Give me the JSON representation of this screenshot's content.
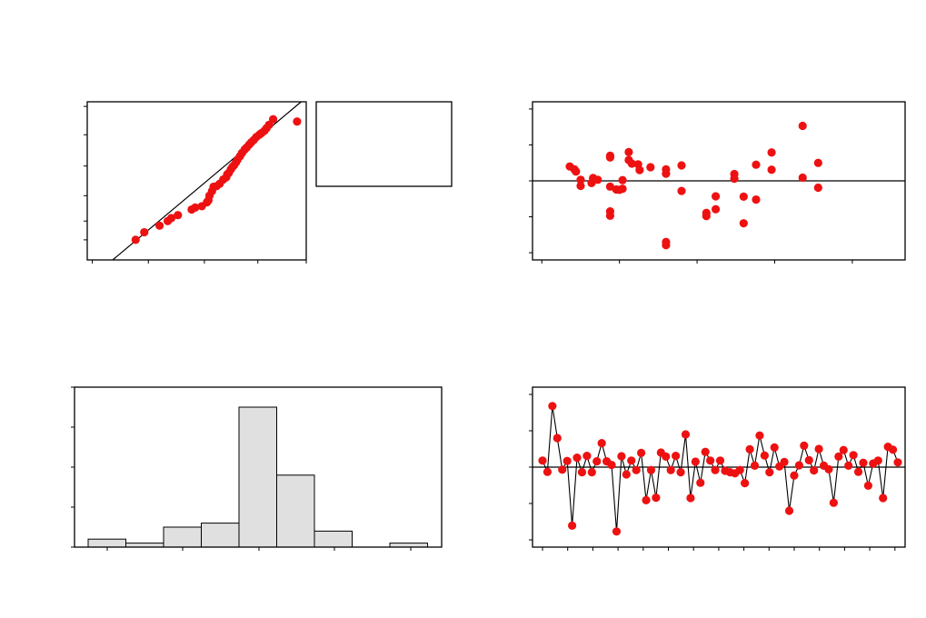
{
  "colors": {
    "points": "#ee1111",
    "bars": "#e0e0e0",
    "axes": "#000000",
    "background": "#ffffff"
  },
  "legend_box": {
    "text": ""
  },
  "chart_data": [
    {
      "id": "normal-probability-plot",
      "type": "scatter",
      "xlim": [
        -3.3,
        1.0
      ],
      "ylim": [
        -2.4,
        2.4
      ],
      "reference_line": {
        "x": [
          -2.8,
          0.9
        ],
        "y": [
          -2.4,
          2.4
        ]
      },
      "points": [
        [
          -2.35,
          -1.79
        ],
        [
          -2.18,
          -1.56
        ],
        [
          -1.88,
          -1.36
        ],
        [
          -1.72,
          -1.22
        ],
        [
          -1.65,
          -1.13
        ],
        [
          -1.52,
          -1.04
        ],
        [
          -1.25,
          -0.87
        ],
        [
          -1.18,
          -0.81
        ],
        [
          -1.05,
          -0.77
        ],
        [
          -0.95,
          -0.65
        ],
        [
          -0.92,
          -0.59
        ],
        [
          -0.9,
          -0.45
        ],
        [
          -0.85,
          -0.31
        ],
        [
          -0.82,
          -0.18
        ],
        [
          -0.76,
          -0.16
        ],
        [
          -0.7,
          -0.09
        ],
        [
          -0.63,
          0.04
        ],
        [
          -0.57,
          0.11
        ],
        [
          -0.55,
          0.2
        ],
        [
          -0.52,
          0.24
        ],
        [
          -0.48,
          0.35
        ],
        [
          -0.45,
          0.42
        ],
        [
          -0.42,
          0.47
        ],
        [
          -0.38,
          0.56
        ],
        [
          -0.35,
          0.64
        ],
        [
          -0.3,
          0.75
        ],
        [
          -0.26,
          0.85
        ],
        [
          -0.21,
          0.95
        ],
        [
          -0.17,
          1.01
        ],
        [
          -0.12,
          1.1
        ],
        [
          -0.08,
          1.17
        ],
        [
          -0.03,
          1.24
        ],
        [
          0.02,
          1.33
        ],
        [
          0.08,
          1.4
        ],
        [
          0.12,
          1.45
        ],
        [
          0.18,
          1.52
        ],
        [
          0.22,
          1.6
        ],
        [
          0.27,
          1.7
        ],
        [
          0.35,
          1.87
        ],
        [
          0.82,
          1.8
        ]
      ]
    },
    {
      "id": "residuals-vs-fitted",
      "type": "scatter",
      "xlim": [
        -1.0,
        11.0
      ],
      "ylim": [
        -2.2,
        2.2
      ],
      "reference_line": {
        "y": 0
      },
      "points": [
        [
          -0.3,
          0.4
        ],
        [
          -0.15,
          0.32
        ],
        [
          -0.1,
          0.26
        ],
        [
          0.05,
          0.03
        ],
        [
          0.05,
          -0.14
        ],
        [
          0.4,
          -0.06
        ],
        [
          0.45,
          0.08
        ],
        [
          0.6,
          0.03
        ],
        [
          1.0,
          -0.16
        ],
        [
          1.0,
          0.7
        ],
        [
          1.0,
          0.65
        ],
        [
          1.0,
          -0.85
        ],
        [
          1.0,
          -0.97
        ],
        [
          1.2,
          -0.24
        ],
        [
          1.3,
          -0.25
        ],
        [
          1.4,
          -0.22
        ],
        [
          1.4,
          0.02
        ],
        [
          1.6,
          0.58
        ],
        [
          1.6,
          0.8
        ],
        [
          1.7,
          0.48
        ],
        [
          1.9,
          0.46
        ],
        [
          1.95,
          0.3
        ],
        [
          2.3,
          0.38
        ],
        [
          2.8,
          0.32
        ],
        [
          2.8,
          0.2
        ],
        [
          2.8,
          -1.7
        ],
        [
          2.8,
          -1.79
        ],
        [
          3.3,
          0.43
        ],
        [
          3.3,
          -0.28
        ],
        [
          4.1,
          -0.89
        ],
        [
          4.1,
          -0.98
        ],
        [
          4.4,
          -0.43
        ],
        [
          4.4,
          -0.79
        ],
        [
          5.0,
          0.19
        ],
        [
          5.0,
          0.06
        ],
        [
          5.3,
          -1.18
        ],
        [
          5.3,
          -0.44
        ],
        [
          5.7,
          -0.52
        ],
        [
          5.7,
          0.45
        ],
        [
          6.2,
          0.79
        ],
        [
          6.2,
          0.31
        ],
        [
          7.2,
          1.53
        ],
        [
          7.2,
          0.09
        ],
        [
          7.7,
          -0.19
        ],
        [
          7.7,
          0.5
        ]
      ]
    },
    {
      "id": "histogram",
      "type": "bar",
      "bins": 9,
      "values": [
        2,
        1,
        5,
        6,
        35,
        18,
        4,
        0,
        1
      ],
      "ylim": [
        0,
        40
      ]
    },
    {
      "id": "residuals-vs-order",
      "type": "line",
      "xlim": [
        0,
        46
      ],
      "ylim": [
        -2.2,
        2.2
      ],
      "reference_line": {
        "y": 0
      },
      "values": [
        0.18,
        -0.13,
        1.68,
        0.8,
        -0.07,
        0.17,
        -1.61,
        0.26,
        -0.14,
        0.31,
        -0.14,
        0.16,
        0.66,
        0.16,
        0.06,
        -1.77,
        0.3,
        -0.2,
        0.18,
        -0.08,
        0.39,
        -0.91,
        -0.08,
        -0.84,
        0.4,
        0.29,
        -0.08,
        0.31,
        -0.14,
        0.9,
        -0.85,
        0.15,
        -0.43,
        0.42,
        0.18,
        -0.08,
        0.18,
        -0.1,
        -0.14,
        -0.17,
        -0.08,
        -0.44,
        0.49,
        0.04,
        0.87,
        0.32,
        -0.14,
        0.54,
        0.02,
        0.14,
        -1.2,
        -0.23,
        0.05,
        0.59,
        0.19,
        -0.09,
        0.5,
        0.04,
        -0.06,
        -0.98,
        0.29,
        0.47,
        0.04,
        0.33,
        -0.13,
        0.12,
        -0.51,
        0.1,
        0.18,
        -0.85,
        0.56,
        0.48,
        0.13
      ]
    }
  ]
}
